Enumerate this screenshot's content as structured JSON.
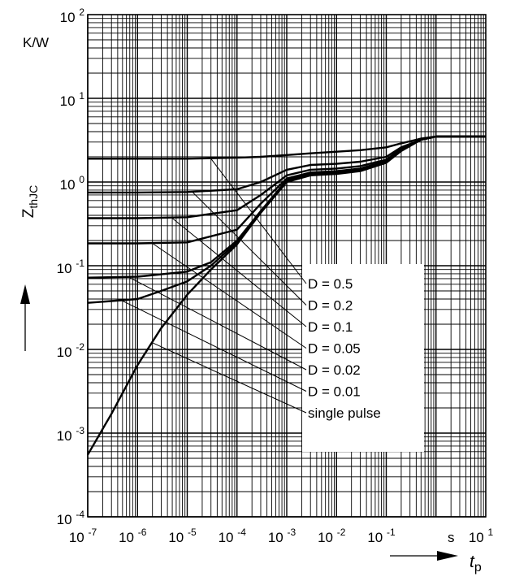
{
  "chart_data": {
    "type": "line",
    "x_scale": "log",
    "y_scale": "log",
    "xlim": [
      1e-07,
      10
    ],
    "ylim": [
      0.0001,
      100
    ],
    "grid": true,
    "x_ticks": [
      {
        "value": 1e-07,
        "base": "10",
        "exp": "-7"
      },
      {
        "value": 1e-06,
        "base": "10",
        "exp": "-6"
      },
      {
        "value": 1e-05,
        "base": "10",
        "exp": "-5"
      },
      {
        "value": 0.0001,
        "base": "10",
        "exp": "-4"
      },
      {
        "value": 0.001,
        "base": "10",
        "exp": "-3"
      },
      {
        "value": 0.01,
        "base": "10",
        "exp": "-2"
      },
      {
        "value": 0.1,
        "base": "10",
        "exp": "-1"
      },
      {
        "value": 10,
        "base": "10",
        "exp": "1"
      }
    ],
    "y_ticks": [
      {
        "value": 100,
        "base": "10",
        "exp": "2"
      },
      {
        "value": 10,
        "base": "10",
        "exp": "1"
      },
      {
        "value": 1,
        "base": "10",
        "exp": "0"
      },
      {
        "value": 0.1,
        "base": "10",
        "exp": "-1"
      },
      {
        "value": 0.01,
        "base": "10",
        "exp": "-2"
      },
      {
        "value": 0.001,
        "base": "10",
        "exp": "-3"
      },
      {
        "value": 0.0001,
        "base": "10",
        "exp": "-4"
      }
    ],
    "x_unit": "s",
    "x_label": {
      "main": "t",
      "sub": "p"
    },
    "y_unit": "K/W",
    "y_label": {
      "main": "Z",
      "sub": "thJC"
    },
    "series": [
      {
        "name": "D = 0.5",
        "x": [
          1e-07,
          1e-06,
          1e-05,
          0.0001,
          0.0003,
          0.001,
          0.003,
          0.01,
          0.03,
          0.1,
          0.2,
          0.5,
          1,
          10
        ],
        "y": [
          1.9,
          1.9,
          1.9,
          1.95,
          2.0,
          2.1,
          2.2,
          2.3,
          2.4,
          2.6,
          2.9,
          3.3,
          3.5,
          3.5
        ]
      },
      {
        "name": "D = 0.2",
        "x": [
          1e-07,
          1e-06,
          1e-05,
          0.0001,
          0.0003,
          0.001,
          0.003,
          0.01,
          0.03,
          0.1,
          0.2,
          0.5,
          1,
          10
        ],
        "y": [
          0.75,
          0.75,
          0.76,
          0.82,
          1.0,
          1.4,
          1.6,
          1.65,
          1.75,
          2.0,
          2.6,
          3.2,
          3.5,
          3.5
        ]
      },
      {
        "name": "D = 0.1",
        "x": [
          1e-07,
          1e-06,
          1e-05,
          0.0001,
          0.0003,
          0.001,
          0.003,
          0.01,
          0.03,
          0.1,
          0.2,
          0.5,
          1,
          10
        ],
        "y": [
          0.37,
          0.37,
          0.38,
          0.46,
          0.7,
          1.2,
          1.4,
          1.45,
          1.55,
          1.85,
          2.5,
          3.2,
          3.5,
          3.5
        ]
      },
      {
        "name": "D = 0.05",
        "x": [
          1e-07,
          1e-06,
          1e-05,
          0.0001,
          0.0003,
          0.001,
          0.003,
          0.01,
          0.03,
          0.1,
          0.2,
          0.5,
          1,
          10
        ],
        "y": [
          0.185,
          0.185,
          0.19,
          0.27,
          0.55,
          1.1,
          1.3,
          1.35,
          1.45,
          1.78,
          2.45,
          3.2,
          3.5,
          3.5
        ]
      },
      {
        "name": "D = 0.02",
        "x": [
          1e-07,
          1e-06,
          1e-05,
          3e-05,
          0.0001,
          0.0003,
          0.001,
          0.003,
          0.01,
          0.03,
          0.1,
          0.2,
          0.5,
          1,
          10
        ],
        "y": [
          0.072,
          0.074,
          0.085,
          0.11,
          0.2,
          0.45,
          1.05,
          1.25,
          1.3,
          1.4,
          1.75,
          2.4,
          3.2,
          3.5,
          3.5
        ]
      },
      {
        "name": "D = 0.01",
        "x": [
          1e-07,
          1e-06,
          3e-06,
          1e-05,
          3e-05,
          0.0001,
          0.0003,
          0.001,
          0.003,
          0.01,
          0.03,
          0.1,
          0.2,
          0.5,
          1,
          10
        ],
        "y": [
          0.036,
          0.04,
          0.05,
          0.065,
          0.1,
          0.19,
          0.44,
          1.02,
          1.22,
          1.28,
          1.38,
          1.72,
          2.4,
          3.2,
          3.5,
          3.5
        ]
      },
      {
        "name": "single pulse",
        "x": [
          1e-07,
          3e-07,
          1e-06,
          3e-06,
          1e-05,
          3e-05,
          0.0001,
          0.0003,
          0.001,
          0.003,
          0.01,
          0.03,
          0.1,
          0.2,
          0.5,
          1,
          10
        ],
        "y": [
          0.00055,
          0.0017,
          0.0065,
          0.018,
          0.045,
          0.09,
          0.18,
          0.43,
          1.0,
          1.2,
          1.25,
          1.35,
          1.7,
          2.35,
          3.2,
          3.5,
          3.5
        ]
      }
    ],
    "legend_leaders": [
      {
        "name": "D = 0.5",
        "anchor": [
          3e-05,
          1.9
        ]
      },
      {
        "name": "D = 0.2",
        "anchor": [
          1.3e-05,
          0.75
        ]
      },
      {
        "name": "D = 0.1",
        "anchor": [
          5e-06,
          0.37
        ]
      },
      {
        "name": "D = 0.05",
        "anchor": [
          2e-06,
          0.185
        ]
      },
      {
        "name": "D = 0.02",
        "anchor": [
          7e-07,
          0.072
        ]
      },
      {
        "name": "D = 0.01",
        "anchor": [
          5e-07,
          0.038
        ]
      },
      {
        "name": "single pulse",
        "anchor": [
          2e-06,
          0.012
        ]
      }
    ]
  }
}
